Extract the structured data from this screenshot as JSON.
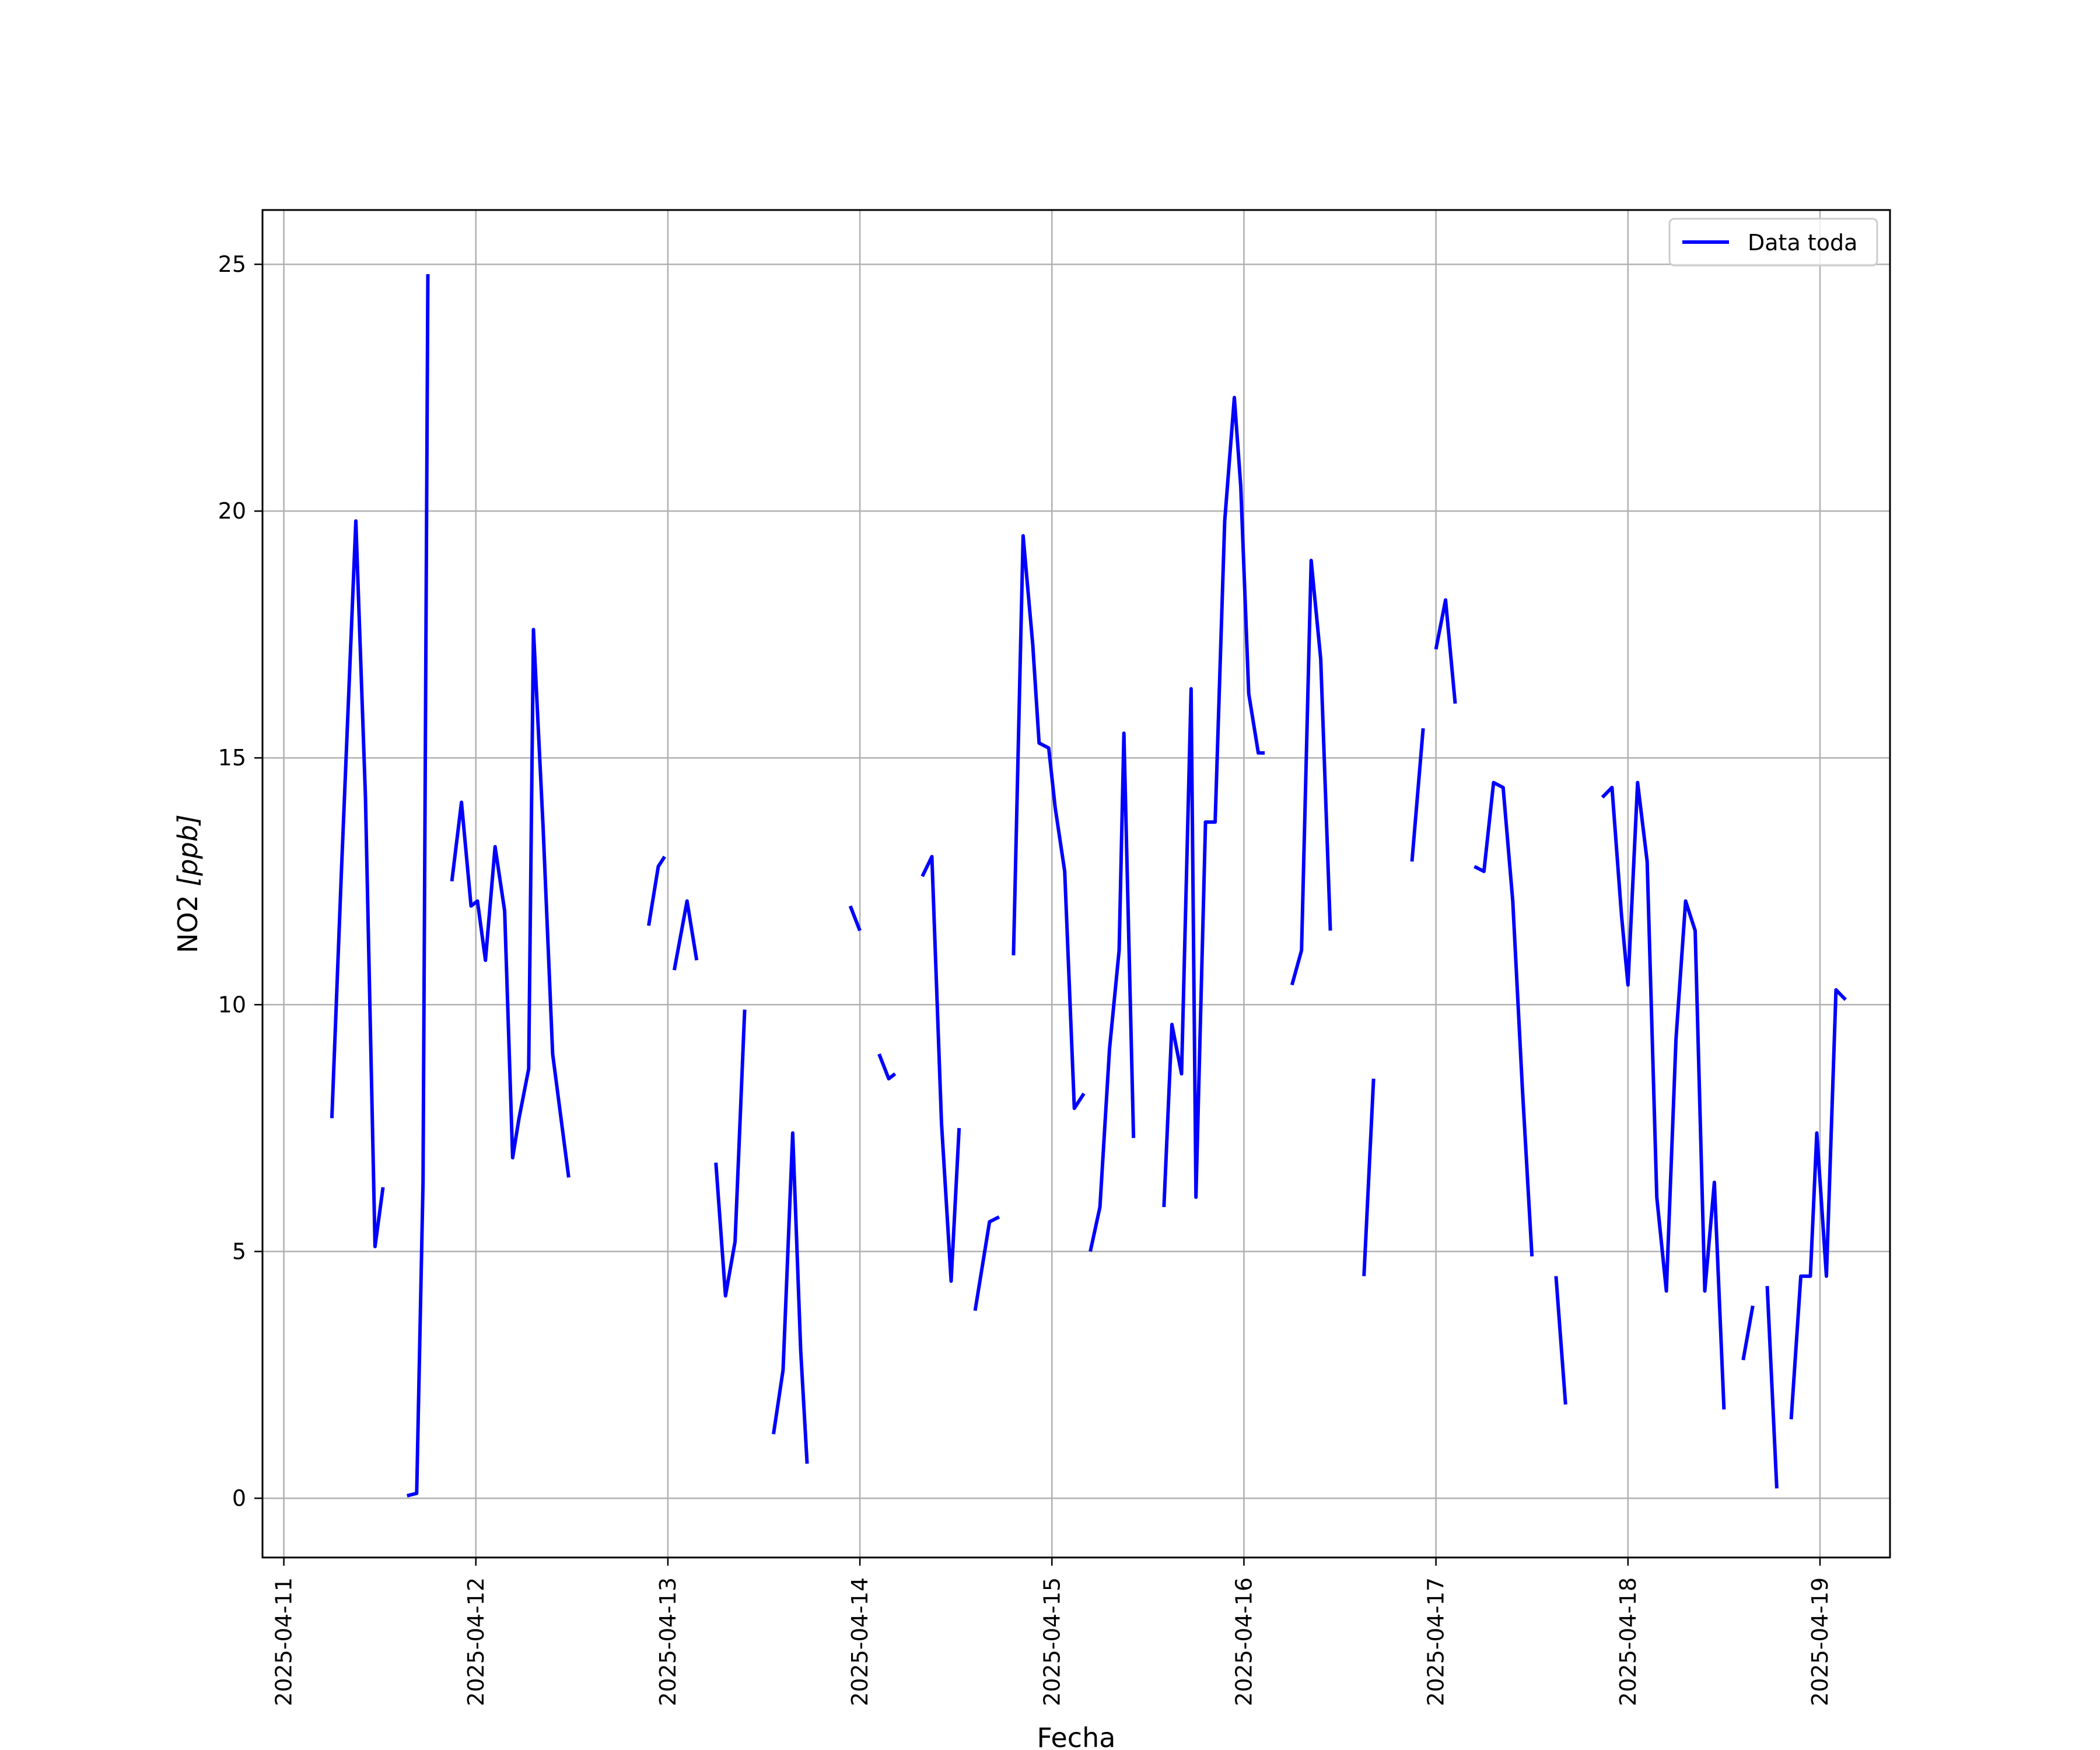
{
  "chart_data": {
    "type": "line",
    "xlabel": "Fecha",
    "ylabel_main": "NO2 ",
    "ylabel_unit": "[ppb]",
    "xlim": [
      "2025-04-10 21:20",
      "2025-04-19 08:45"
    ],
    "ylim": [
      -1.2,
      26.1
    ],
    "grid": true,
    "legend_placement": "top-right",
    "x_ticks": [
      "2025-04-11",
      "2025-04-12",
      "2025-04-13",
      "2025-04-14",
      "2025-04-15",
      "2025-04-16",
      "2025-04-17",
      "2025-04-18",
      "2025-04-19"
    ],
    "y_ticks": [
      0,
      5,
      10,
      15,
      20,
      25
    ],
    "series": [
      {
        "name": "Data toda",
        "color": "#0000ff",
        "segments": [
          [
            [
              "2025-04-11 06:00",
              7.7
            ],
            [
              "2025-04-11 07:12",
              12.7
            ],
            [
              "2025-04-11 09:00",
              19.8
            ],
            [
              "2025-04-11 10:12",
              14.2
            ],
            [
              "2025-04-11 11:24",
              5.1
            ],
            [
              "2025-04-11 12:24",
              6.3
            ]
          ],
          [
            [
              "2025-04-11 15:24",
              0.05
            ],
            [
              "2025-04-11 16:36",
              0.1
            ],
            [
              "2025-04-11 17:24",
              6.4
            ],
            [
              "2025-04-11 18:00",
              24.8
            ]
          ],
          [
            [
              "2025-04-11 21:00",
              12.5
            ],
            [
              "2025-04-11 22:12",
              14.1
            ],
            [
              "2025-04-11 23:24",
              12.0
            ],
            [
              "2025-04-12 00:12",
              12.1
            ],
            [
              "2025-04-12 01:12",
              10.9
            ],
            [
              "2025-04-12 02:24",
              13.2
            ],
            [
              "2025-04-12 03:36",
              11.9
            ],
            [
              "2025-04-12 04:36",
              6.9
            ],
            [
              "2025-04-12 05:24",
              7.7
            ],
            [
              "2025-04-12 06:36",
              8.7
            ],
            [
              "2025-04-12 07:12",
              17.6
            ],
            [
              "2025-04-12 08:24",
              13.6
            ],
            [
              "2025-04-12 09:36",
              9.0
            ],
            [
              "2025-04-12 11:36",
              6.5
            ]
          ],
          [
            [
              "2025-04-12 21:36",
              11.6
            ],
            [
              "2025-04-12 22:48",
              12.8
            ],
            [
              "2025-04-12 23:36",
              13.0
            ]
          ],
          [
            [
              "2025-04-13 00:48",
              10.7
            ],
            [
              "2025-04-13 02:24",
              12.1
            ],
            [
              "2025-04-13 03:36",
              10.9
            ]
          ],
          [
            [
              "2025-04-13 06:00",
              6.8
            ],
            [
              "2025-04-13 07:12",
              4.1
            ],
            [
              "2025-04-13 08:24",
              5.2
            ],
            [
              "2025-04-13 09:36",
              9.9
            ]
          ],
          [
            [
              "2025-04-13 13:12",
              1.3
            ],
            [
              "2025-04-13 14:24",
              2.6
            ],
            [
              "2025-04-13 15:36",
              7.4
            ],
            [
              "2025-04-13 16:36",
              3.0
            ],
            [
              "2025-04-13 17:24",
              0.7
            ]
          ],
          [
            [
              "2025-04-13 22:48",
              12.0
            ],
            [
              "2025-04-14 00:00",
              11.5
            ]
          ],
          [
            [
              "2025-04-14 02:24",
              9.0
            ],
            [
              "2025-04-14 03:36",
              8.5
            ],
            [
              "2025-04-14 04:24",
              8.6
            ]
          ],
          [
            [
              "2025-04-14 07:48",
              12.6
            ],
            [
              "2025-04-14 09:00",
              13.0
            ],
            [
              "2025-04-14 10:12",
              7.6
            ],
            [
              "2025-04-14 11:24",
              4.4
            ],
            [
              "2025-04-14 12:24",
              7.5
            ]
          ],
          [
            [
              "2025-04-14 14:24",
              3.8
            ],
            [
              "2025-04-14 16:12",
              5.6
            ],
            [
              "2025-04-14 17:24",
              5.7
            ]
          ],
          [
            [
              "2025-04-14 19:12",
              11.0
            ],
            [
              "2025-04-14 20:24",
              19.5
            ],
            [
              "2025-04-14 21:36",
              17.3
            ],
            [
              "2025-04-14 22:24",
              15.3
            ],
            [
              "2025-04-14 23:36",
              15.2
            ],
            [
              "2025-04-15 00:24",
              14.0
            ],
            [
              "2025-04-15 01:36",
              12.7
            ],
            [
              "2025-04-15 02:48",
              7.9
            ],
            [
              "2025-04-15 04:00",
              8.2
            ]
          ],
          [
            [
              "2025-04-15 04:48",
              5.0
            ],
            [
              "2025-04-15 06:00",
              5.9
            ],
            [
              "2025-04-15 07:12",
              9.1
            ],
            [
              "2025-04-15 08:24",
              11.1
            ],
            [
              "2025-04-15 09:00",
              15.5
            ],
            [
              "2025-04-15 10:12",
              7.3
            ]
          ],
          [
            [
              "2025-04-15 14:00",
              5.9
            ],
            [
              "2025-04-15 15:00",
              9.6
            ],
            [
              "2025-04-15 16:12",
              8.6
            ],
            [
              "2025-04-15 17:24",
              16.4
            ],
            [
              "2025-04-15 18:00",
              6.1
            ],
            [
              "2025-04-15 19:12",
              13.7
            ],
            [
              "2025-04-15 20:24",
              13.7
            ],
            [
              "2025-04-15 21:36",
              19.8
            ],
            [
              "2025-04-15 22:48",
              22.3
            ],
            [
              "2025-04-15 23:36",
              20.5
            ],
            [
              "2025-04-16 00:36",
              16.3
            ],
            [
              "2025-04-16 01:48",
              15.1
            ],
            [
              "2025-04-16 02:36",
              15.1
            ]
          ],
          [
            [
              "2025-04-16 06:00",
              10.4
            ],
            [
              "2025-04-16 07:12",
              11.1
            ],
            [
              "2025-04-16 08:24",
              19.0
            ],
            [
              "2025-04-16 09:36",
              17.0
            ],
            [
              "2025-04-16 10:48",
              11.5
            ]
          ],
          [
            [
              "2025-04-16 15:00",
              4.5
            ],
            [
              "2025-04-16 16:12",
              8.5
            ]
          ],
          [
            [
              "2025-04-16 21:00",
              12.9
            ],
            [
              "2025-04-16 22:24",
              15.6
            ]
          ],
          [
            [
              "2025-04-17 00:00",
              17.2
            ],
            [
              "2025-04-17 01:12",
              18.2
            ],
            [
              "2025-04-17 02:24",
              16.1
            ]
          ],
          [
            [
              "2025-04-17 04:48",
              12.8
            ],
            [
              "2025-04-17 06:00",
              12.7
            ],
            [
              "2025-04-17 07:12",
              14.5
            ],
            [
              "2025-04-17 08:24",
              14.4
            ],
            [
              "2025-04-17 09:36",
              12.1
            ],
            [
              "2025-04-17 10:48",
              8.3
            ],
            [
              "2025-04-17 12:00",
              4.9
            ]
          ],
          [
            [
              "2025-04-17 15:00",
              4.5
            ],
            [
              "2025-04-17 16:12",
              1.9
            ]
          ],
          [
            [
              "2025-04-17 20:48",
              14.2
            ],
            [
              "2025-04-17 22:00",
              14.4
            ],
            [
              "2025-04-17 23:12",
              11.8
            ],
            [
              "2025-04-18 00:00",
              10.4
            ],
            [
              "2025-04-18 01:12",
              14.5
            ],
            [
              "2025-04-18 02:24",
              12.9
            ],
            [
              "2025-04-18 03:36",
              6.1
            ],
            [
              "2025-04-18 04:48",
              4.2
            ],
            [
              "2025-04-18 06:00",
              9.3
            ],
            [
              "2025-04-18 07:12",
              12.1
            ],
            [
              "2025-04-18 08:24",
              11.5
            ],
            [
              "2025-04-18 09:36",
              4.2
            ],
            [
              "2025-04-18 10:48",
              6.4
            ],
            [
              "2025-04-18 12:00",
              1.8
            ]
          ],
          [
            [
              "2025-04-18 14:24",
              2.8
            ],
            [
              "2025-04-18 15:36",
              3.9
            ]
          ],
          [
            [
              "2025-04-18 17:24",
              4.3
            ],
            [
              "2025-04-18 18:36",
              0.2
            ]
          ],
          [
            [
              "2025-04-18 20:24",
              1.6
            ],
            [
              "2025-04-18 21:36",
              4.5
            ],
            [
              "2025-04-18 22:48",
              4.5
            ],
            [
              "2025-04-18 23:36",
              7.4
            ],
            [
              "2025-04-19 00:48",
              4.5
            ],
            [
              "2025-04-19 02:00",
              10.3
            ],
            [
              "2025-04-19 03:12",
              10.1
            ]
          ]
        ]
      }
    ]
  }
}
